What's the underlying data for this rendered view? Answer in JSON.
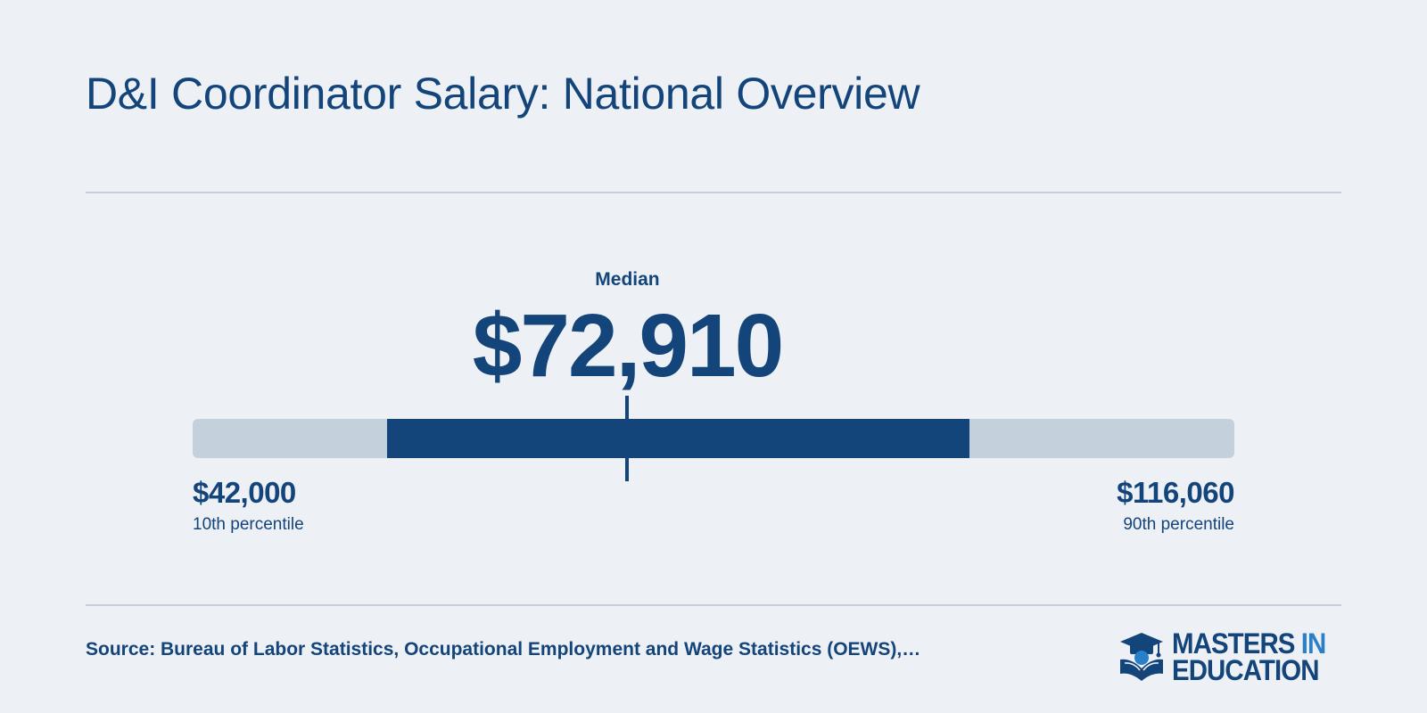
{
  "title": "D&I Coordinator Salary: National Overview",
  "chart_data": {
    "type": "range",
    "title": "D&I Coordinator Salary: National Overview",
    "median": {
      "label": "Median",
      "value": 72910,
      "display": "$72,910"
    },
    "low": {
      "label": "10th percentile",
      "value": 42000,
      "display": "$42,000"
    },
    "high": {
      "label": "90th percentile",
      "value": 116060,
      "display": "$116,060"
    },
    "highlight_range": {
      "start_fraction": 0.187,
      "end_fraction": 0.746
    },
    "colors": {
      "track": "#c4d0db",
      "fill": "#13447a",
      "text": "#13447a",
      "background": "#edf0f5"
    }
  },
  "footer": {
    "source": "Source: Bureau of Labor Statistics, Occupational Employment and Wage Statistics (OEWS),…"
  },
  "logo": {
    "line1_a": "MASTERS",
    "line1_b": "IN",
    "line2": "EDUCATION",
    "icon": "graduation-cap-book-icon",
    "colors": {
      "primary": "#13447a",
      "accent": "#2a7fc8"
    }
  }
}
